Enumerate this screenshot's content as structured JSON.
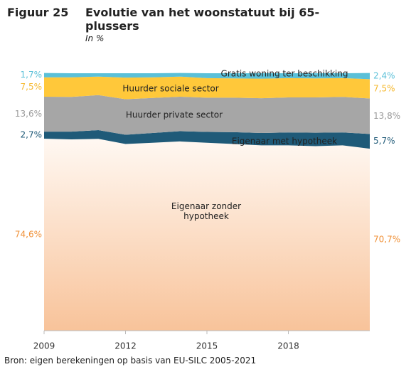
{
  "chart_data": {
    "type": "stacked-area",
    "figure_label": "Figuur 25",
    "title": "Evolutie van het woonstatuut bij 65-plussers",
    "subtitle": "In %",
    "source": "Bron: eigen berekeningen op basis van EU-SILC 2005-2021",
    "x": [
      2009,
      2010,
      2011,
      2012,
      2013,
      2014,
      2015,
      2016,
      2017,
      2018,
      2019,
      2020,
      2021
    ],
    "xlim": [
      2009,
      2021
    ],
    "xticks": [
      2009,
      2012,
      2015,
      2018
    ],
    "ylim": [
      0,
      100
    ],
    "series": [
      {
        "name": "Eigenaar zonder hypotheek",
        "color": "#f8c39a",
        "label_color": "#f0923a",
        "values": [
          74.6,
          74.3,
          74.5,
          72.5,
          73.0,
          73.5,
          73.0,
          72.5,
          72.0,
          72.0,
          71.7,
          72.0,
          70.7
        ],
        "value_labels": [
          "74,6%",
          null,
          null,
          null,
          null,
          null,
          null,
          null,
          null,
          null,
          null,
          null,
          "70,7%"
        ]
      },
      {
        "name": "Eigenaar met hypotheek",
        "color": "#1f5a78",
        "label_color": "#1f5a78",
        "values": [
          2.7,
          3.0,
          3.4,
          3.6,
          3.8,
          4.0,
          4.2,
          4.6,
          4.8,
          5.0,
          5.2,
          5.0,
          5.7
        ],
        "value_labels": [
          "2,7%",
          null,
          null,
          null,
          null,
          null,
          null,
          null,
          null,
          null,
          null,
          null,
          "5,7%"
        ]
      },
      {
        "name": "Huurder private sector",
        "color": "#a6a6a6",
        "label_color": "#9a9a9a",
        "values": [
          13.6,
          13.5,
          13.6,
          13.8,
          13.6,
          13.4,
          13.3,
          13.4,
          13.5,
          13.6,
          13.7,
          13.8,
          13.8
        ],
        "value_labels": [
          "13,6%",
          null,
          null,
          null,
          null,
          null,
          null,
          null,
          null,
          null,
          null,
          null,
          "13,8%"
        ]
      },
      {
        "name": "Huurder sociale sector",
        "color": "#ffc83a",
        "label_color": "#f5b82e",
        "values": [
          7.5,
          7.6,
          7.2,
          8.4,
          8.0,
          7.8,
          7.6,
          7.5,
          7.6,
          7.5,
          7.4,
          7.3,
          7.5
        ],
        "value_labels": [
          "7,5%",
          null,
          null,
          null,
          null,
          null,
          null,
          null,
          null,
          null,
          null,
          null,
          "7,5%"
        ]
      },
      {
        "name": "Gratis woning ter beschikking",
        "color": "#5bc0d8",
        "label_color": "#5bc0d8",
        "values": [
          1.7,
          1.6,
          1.3,
          1.7,
          1.6,
          1.4,
          1.9,
          2.0,
          2.1,
          1.9,
          2.0,
          1.9,
          2.4
        ],
        "value_labels": [
          "1,7%",
          null,
          null,
          null,
          null,
          null,
          null,
          null,
          null,
          null,
          null,
          null,
          "2,4%"
        ]
      }
    ]
  }
}
